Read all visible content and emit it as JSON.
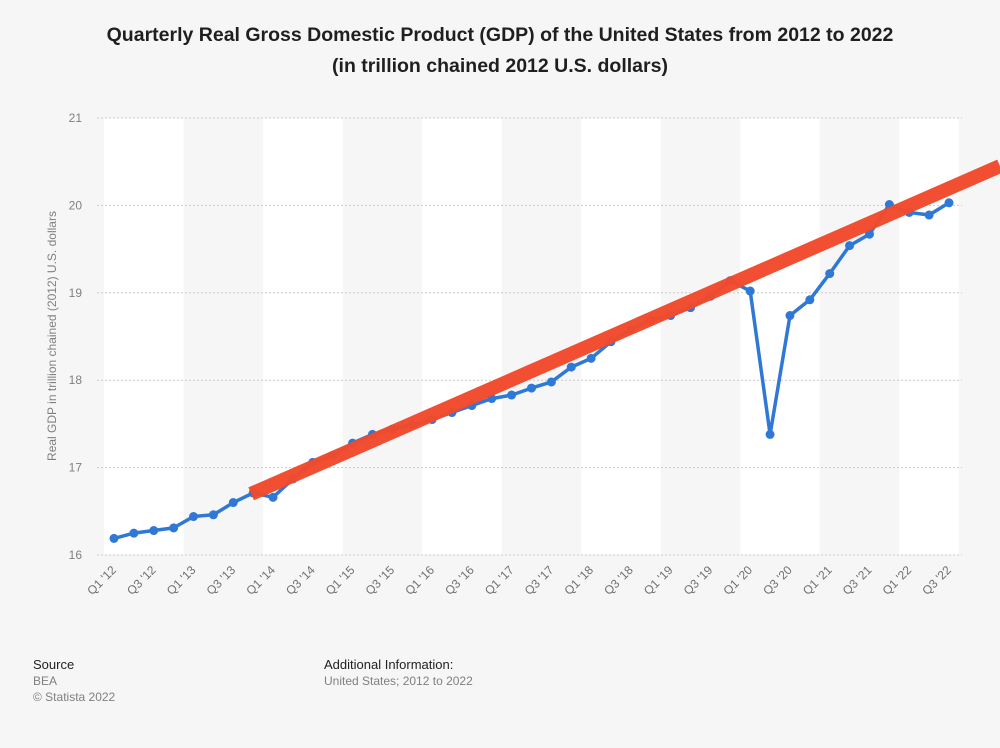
{
  "header": {
    "title_line1": "Quarterly Real Gross Domestic Product (GDP) of the United States from 2012 to 2022",
    "title_line2": "(in trillion chained 2012 U.S. dollars)"
  },
  "chart_data": {
    "type": "line",
    "title": "Quarterly Real Gross Domestic Product (GDP) of the United States from 2012 to 2022 (in trillion chained 2012 U.S. dollars)",
    "xlabel": "",
    "ylabel": "Real GDP in trillion chained (2012) U.S. dollars",
    "ylim": [
      16,
      21
    ],
    "yticks": [
      16,
      17,
      18,
      19,
      20,
      21
    ],
    "grid": true,
    "categories": [
      "Q1 '12",
      "Q2 '12",
      "Q3 '12",
      "Q4 '12",
      "Q1 '13",
      "Q2 '13",
      "Q3 '13",
      "Q4 '13",
      "Q1 '14",
      "Q2 '14",
      "Q3 '14",
      "Q4 '14",
      "Q1 '15",
      "Q2 '15",
      "Q3 '15",
      "Q4 '15",
      "Q1 '16",
      "Q2 '16",
      "Q3 '16",
      "Q4 '16",
      "Q1 '17",
      "Q2 '17",
      "Q3 '17",
      "Q4 '17",
      "Q1 '18",
      "Q2 '18",
      "Q3 '18",
      "Q4 '18",
      "Q1 '19",
      "Q2 '19",
      "Q3 '19",
      "Q4 '19",
      "Q1 '20",
      "Q2 '20",
      "Q3 '20",
      "Q4 '20",
      "Q1 '21",
      "Q2 '21",
      "Q3 '21",
      "Q4 '21",
      "Q1 '22",
      "Q2 '22",
      "Q3 '22"
    ],
    "x_tick_labels": [
      "Q1 '12",
      "Q3 '12",
      "Q1 '13",
      "Q3 '13",
      "Q1 '14",
      "Q3 '14",
      "Q1 '15",
      "Q3 '15",
      "Q1 '16",
      "Q3 '16",
      "Q1 '17",
      "Q3 '17",
      "Q1 '18",
      "Q3 '18",
      "Q1 '19",
      "Q3 '19",
      "Q1 '20",
      "Q3 '20",
      "Q1 '21",
      "Q3 '21",
      "Q1 '22",
      "Q3 '22"
    ],
    "series": [
      {
        "name": "Real GDP",
        "color": "#2f78d6",
        "values": [
          16.19,
          16.25,
          16.28,
          16.31,
          16.44,
          16.46,
          16.6,
          16.71,
          16.66,
          16.87,
          17.06,
          17.14,
          17.28,
          17.38,
          17.44,
          17.49,
          17.55,
          17.63,
          17.71,
          17.79,
          17.83,
          17.91,
          17.98,
          18.15,
          18.25,
          18.44,
          18.58,
          18.69,
          18.74,
          18.83,
          18.96,
          19.14,
          19.02,
          17.38,
          18.74,
          18.92,
          19.22,
          19.54,
          19.67,
          20.01,
          19.92,
          19.89,
          20.03
        ]
      }
    ],
    "annotations": [
      {
        "type": "trend-line",
        "color": "#f24a2c",
        "from": [
          "Q4 '13",
          16.7
        ],
        "to": [
          "beyond Q3 '22",
          20.45
        ]
      }
    ]
  },
  "footer": {
    "source_heading": "Source",
    "source_value": "BEA",
    "copyright": "© Statista 2022",
    "info_heading": "Additional Information:",
    "info_value": "United States; 2012 to 2022"
  }
}
